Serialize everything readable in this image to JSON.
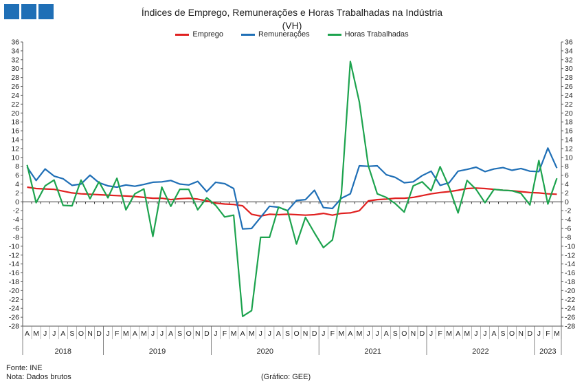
{
  "logo": {
    "icon": "three-blue-squares-logo"
  },
  "title_line1": "Índices de Emprego, Remunerações e Horas Trabalhadas na Indústria",
  "title_line2": "(VH)",
  "footer": {
    "source": "Fonte: INE",
    "note": "Nota: Dados brutos",
    "credit": "(Gráfico: GEE)"
  },
  "chart_data": {
    "type": "line",
    "y_ticks": [
      36,
      34,
      32,
      30,
      28,
      26,
      24,
      22,
      20,
      18,
      16,
      14,
      12,
      10,
      8,
      6,
      4,
      2,
      0,
      -2,
      -4,
      -6,
      -8,
      -10,
      -12,
      -14,
      -16,
      -18,
      -20,
      -22,
      -24,
      -26,
      -28
    ],
    "ylim": [
      -28,
      36
    ],
    "grid": false,
    "legend_position": "top",
    "month_labels": [
      "A",
      "M",
      "J",
      "J",
      "A",
      "S",
      "O",
      "N",
      "D",
      "J",
      "F",
      "M",
      "A",
      "M",
      "J",
      "J",
      "A",
      "S",
      "O",
      "N",
      "D",
      "J",
      "F",
      "M",
      "A",
      "M",
      "J",
      "J",
      "A",
      "S",
      "O",
      "N",
      "D",
      "J",
      "F",
      "M",
      "A",
      "M",
      "J",
      "J",
      "A",
      "S",
      "O",
      "N",
      "D",
      "J",
      "F",
      "M",
      "A",
      "M",
      "J",
      "J",
      "A",
      "S",
      "O",
      "N",
      "D",
      "J",
      "F",
      "M"
    ],
    "years": [
      {
        "label": "2018",
        "start": 0,
        "end": 8
      },
      {
        "label": "2019",
        "start": 9,
        "end": 20
      },
      {
        "label": "2020",
        "start": 21,
        "end": 32
      },
      {
        "label": "2021",
        "start": 33,
        "end": 44
      },
      {
        "label": "2022",
        "start": 45,
        "end": 56
      },
      {
        "label": "2023",
        "start": 57,
        "end": 59
      }
    ],
    "series": [
      {
        "name": "Emprego",
        "color": "#e02020",
        "values": [
          3.3,
          3.0,
          2.9,
          2.8,
          2.4,
          2.0,
          1.8,
          1.7,
          1.6,
          1.5,
          1.4,
          1.3,
          1.2,
          1.0,
          0.8,
          0.8,
          0.5,
          0.7,
          0.8,
          0.6,
          0.2,
          -0.3,
          -0.5,
          -0.6,
          -0.9,
          -2.8,
          -3.2,
          -2.8,
          -2.9,
          -2.8,
          -2.9,
          -3.0,
          -2.9,
          -2.6,
          -3.0,
          -2.6,
          -2.5,
          -2.0,
          0.2,
          0.5,
          0.6,
          0.8,
          0.8,
          1.0,
          1.4,
          1.8,
          2.1,
          2.3,
          2.6,
          3.0,
          3.1,
          3.0,
          2.8,
          2.6,
          2.5,
          2.3,
          2.1,
          2.0,
          1.8,
          1.7
        ]
      },
      {
        "name": "Remunerações",
        "color": "#1f6fb6",
        "values": [
          7.8,
          4.8,
          7.4,
          5.8,
          5.2,
          3.7,
          4.0,
          6.0,
          4.3,
          3.6,
          3.3,
          3.8,
          3.5,
          3.9,
          4.4,
          4.5,
          4.8,
          4.0,
          3.8,
          4.6,
          2.3,
          4.4,
          4.1,
          3.0,
          -6.1,
          -6.0,
          -3.5,
          -1.0,
          -1.2,
          -2.0,
          0.3,
          0.5,
          2.6,
          -1.3,
          -1.5,
          0.8,
          1.8,
          8.1,
          8.0,
          8.1,
          6.1,
          5.5,
          4.3,
          4.5,
          5.9,
          6.9,
          3.7,
          4.3,
          6.9,
          7.3,
          7.8,
          6.8,
          7.4,
          7.7,
          7.1,
          7.5,
          6.9,
          6.8,
          12.1,
          7.6
        ]
      },
      {
        "name": "Horas Trabalhadas",
        "color": "#1da34e",
        "values": [
          8.3,
          -0.2,
          3.6,
          4.9,
          -0.8,
          -0.9,
          4.9,
          0.7,
          4.5,
          0.9,
          5.3,
          -1.8,
          1.8,
          2.9,
          -7.8,
          3.3,
          -1.0,
          2.8,
          2.8,
          -1.8,
          0.9,
          -0.8,
          -3.4,
          -3.0,
          -25.8,
          -24.5,
          -8.0,
          -8.0,
          -1.2,
          -2.0,
          -9.5,
          -3.5,
          -7.0,
          -10.3,
          -8.6,
          1.8,
          31.6,
          22.5,
          8.1,
          1.8,
          1.0,
          -0.4,
          -2.3,
          3.6,
          4.5,
          2.5,
          7.9,
          3.3,
          -2.5,
          4.8,
          2.8,
          -0.2,
          2.8,
          2.6,
          2.5,
          1.9,
          -0.7,
          9.3,
          -0.5,
          5.3
        ]
      }
    ]
  }
}
